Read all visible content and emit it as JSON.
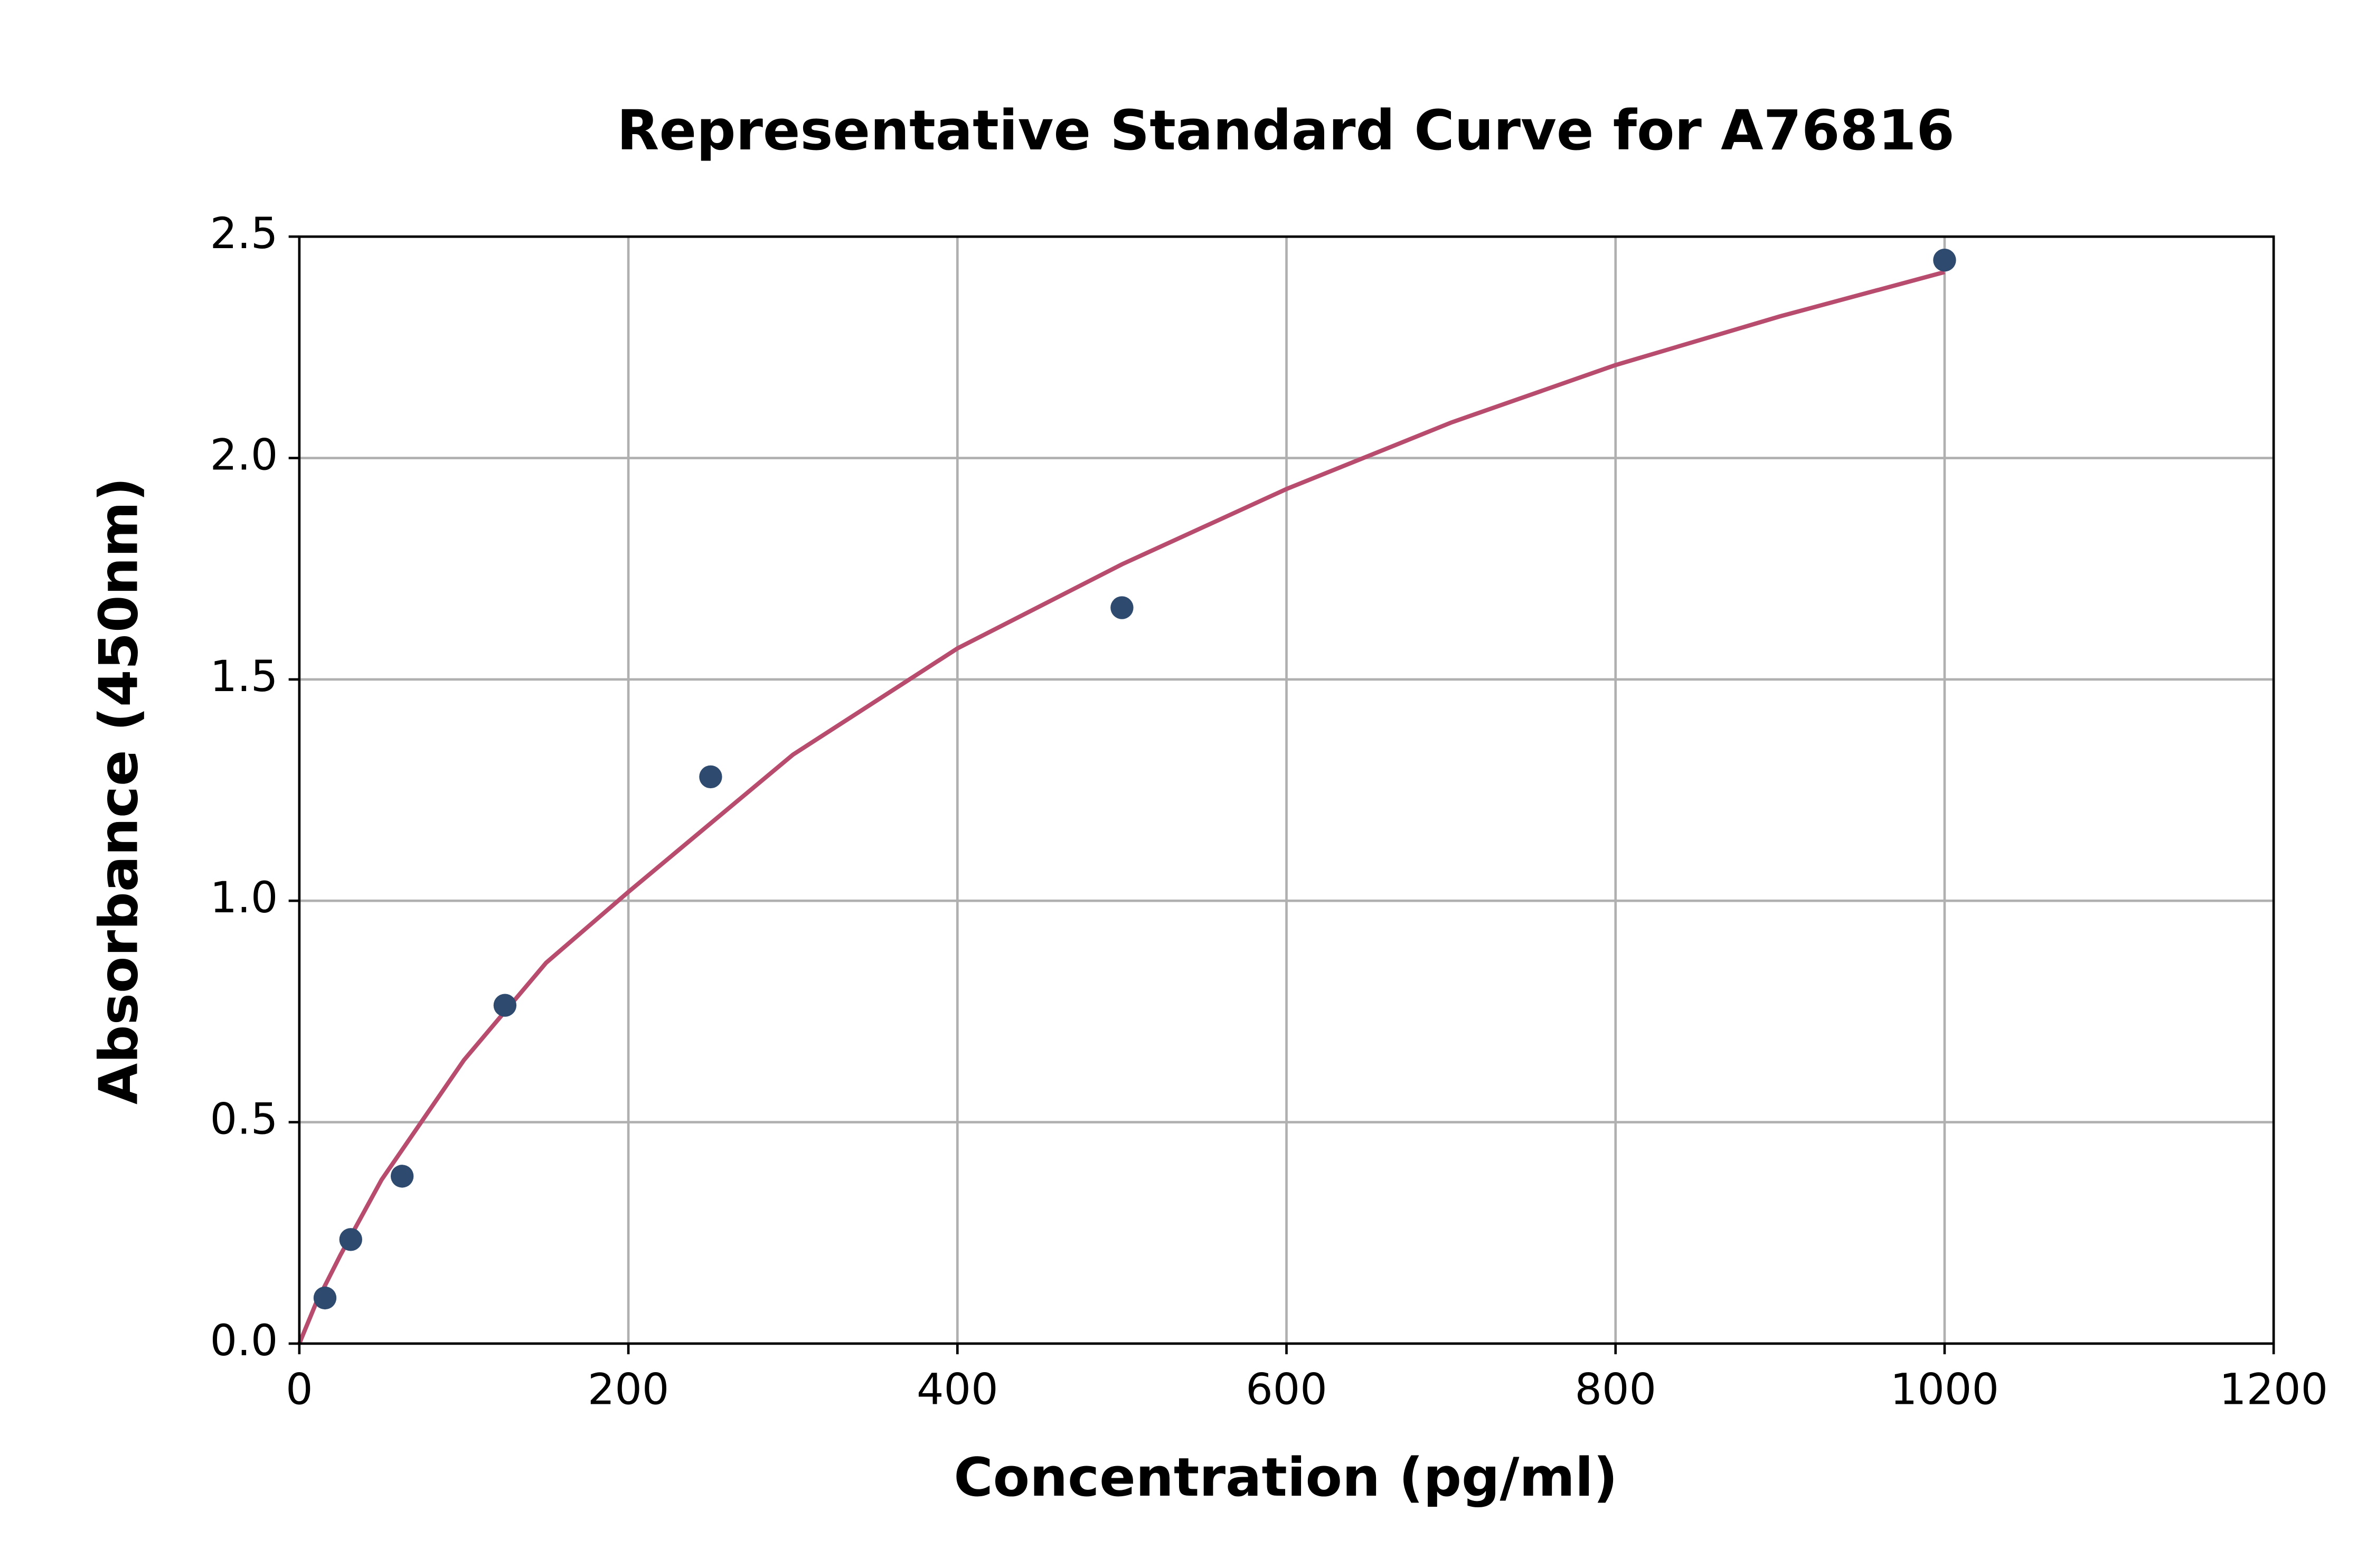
{
  "chart_data": {
    "type": "scatter",
    "title": "Representative Standard Curve for A76816",
    "x_label": "Concentration (pg/ml)",
    "y_label": "Absorbance (450nm)",
    "xlim": [
      0,
      1200
    ],
    "xticks": [
      0,
      200,
      400,
      600,
      800,
      1000,
      1200
    ],
    "ylim": [
      0,
      2.5
    ],
    "yticks": [
      {
        "value": 0,
        "label": "0.0"
      },
      {
        "value": 0.5,
        "label": "0.5"
      },
      {
        "value": 1,
        "label": "1.0"
      },
      {
        "value": 1.5,
        "label": "1.5"
      },
      {
        "value": 2,
        "label": "2.0"
      },
      {
        "value": 2.5,
        "label": "2.5"
      }
    ],
    "grid": true,
    "series": [
      {
        "type": "scatter",
        "color": "#2e4a6e",
        "x": [
          15.6,
          31.25,
          62.5,
          125,
          250,
          500,
          1000
        ],
        "values": [
          0.103,
          0.235,
          0.378,
          0.764,
          1.28,
          1.662,
          2.447
        ]
      },
      {
        "type": "line",
        "color": "#b84c6e",
        "x": [
          0,
          10,
          25,
          50,
          100,
          150,
          200,
          300,
          400,
          500,
          600,
          700,
          800,
          900,
          1000
        ],
        "values": [
          0,
          0.09,
          0.2,
          0.37,
          0.64,
          0.86,
          1.02,
          1.33,
          1.57,
          1.76,
          1.93,
          2.08,
          2.21,
          2.32,
          2.42
        ]
      }
    ]
  }
}
